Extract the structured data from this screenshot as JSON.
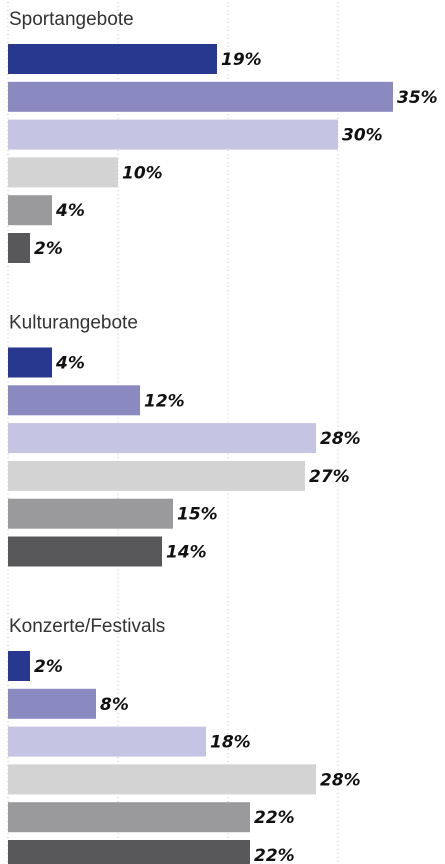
{
  "chart_data": [
    {
      "type": "bar",
      "orientation": "horizontal",
      "title": "Sportangebote",
      "values": [
        19,
        35,
        30,
        10,
        4,
        2
      ],
      "value_labels": [
        "19%",
        "35%",
        "30%",
        "10%",
        "4%",
        "2%"
      ],
      "colors": [
        "#27388e",
        "#8a89c0",
        "#c5c5e3",
        "#d3d3d3",
        "#9a9a9c",
        "#58585a"
      ],
      "xlim": [
        0,
        40
      ],
      "xticks": [
        0,
        10,
        20,
        30
      ],
      "grid": true
    },
    {
      "type": "bar",
      "orientation": "horizontal",
      "title": "Kulturangebote",
      "values": [
        4,
        12,
        28,
        27,
        15,
        14
      ],
      "value_labels": [
        "4%",
        "12%",
        "28%",
        "27%",
        "15%",
        "14%"
      ],
      "colors": [
        "#27388e",
        "#8a89c0",
        "#c5c5e3",
        "#d3d3d3",
        "#9a9a9c",
        "#58585a"
      ],
      "xlim": [
        0,
        40
      ],
      "xticks": [
        0,
        10,
        20,
        30
      ],
      "grid": true
    },
    {
      "type": "bar",
      "orientation": "horizontal",
      "title": "Konzerte/Festivals",
      "values": [
        2,
        8,
        18,
        28,
        22,
        22
      ],
      "value_labels": [
        "2%",
        "8%",
        "18%",
        "28%",
        "22%",
        "22%"
      ],
      "colors": [
        "#27388e",
        "#8a89c0",
        "#c5c5e3",
        "#d3d3d3",
        "#9a9a9c",
        "#58585a"
      ],
      "xlim": [
        0,
        40
      ],
      "xticks": [
        0,
        10,
        20,
        30
      ],
      "grid": true
    }
  ]
}
